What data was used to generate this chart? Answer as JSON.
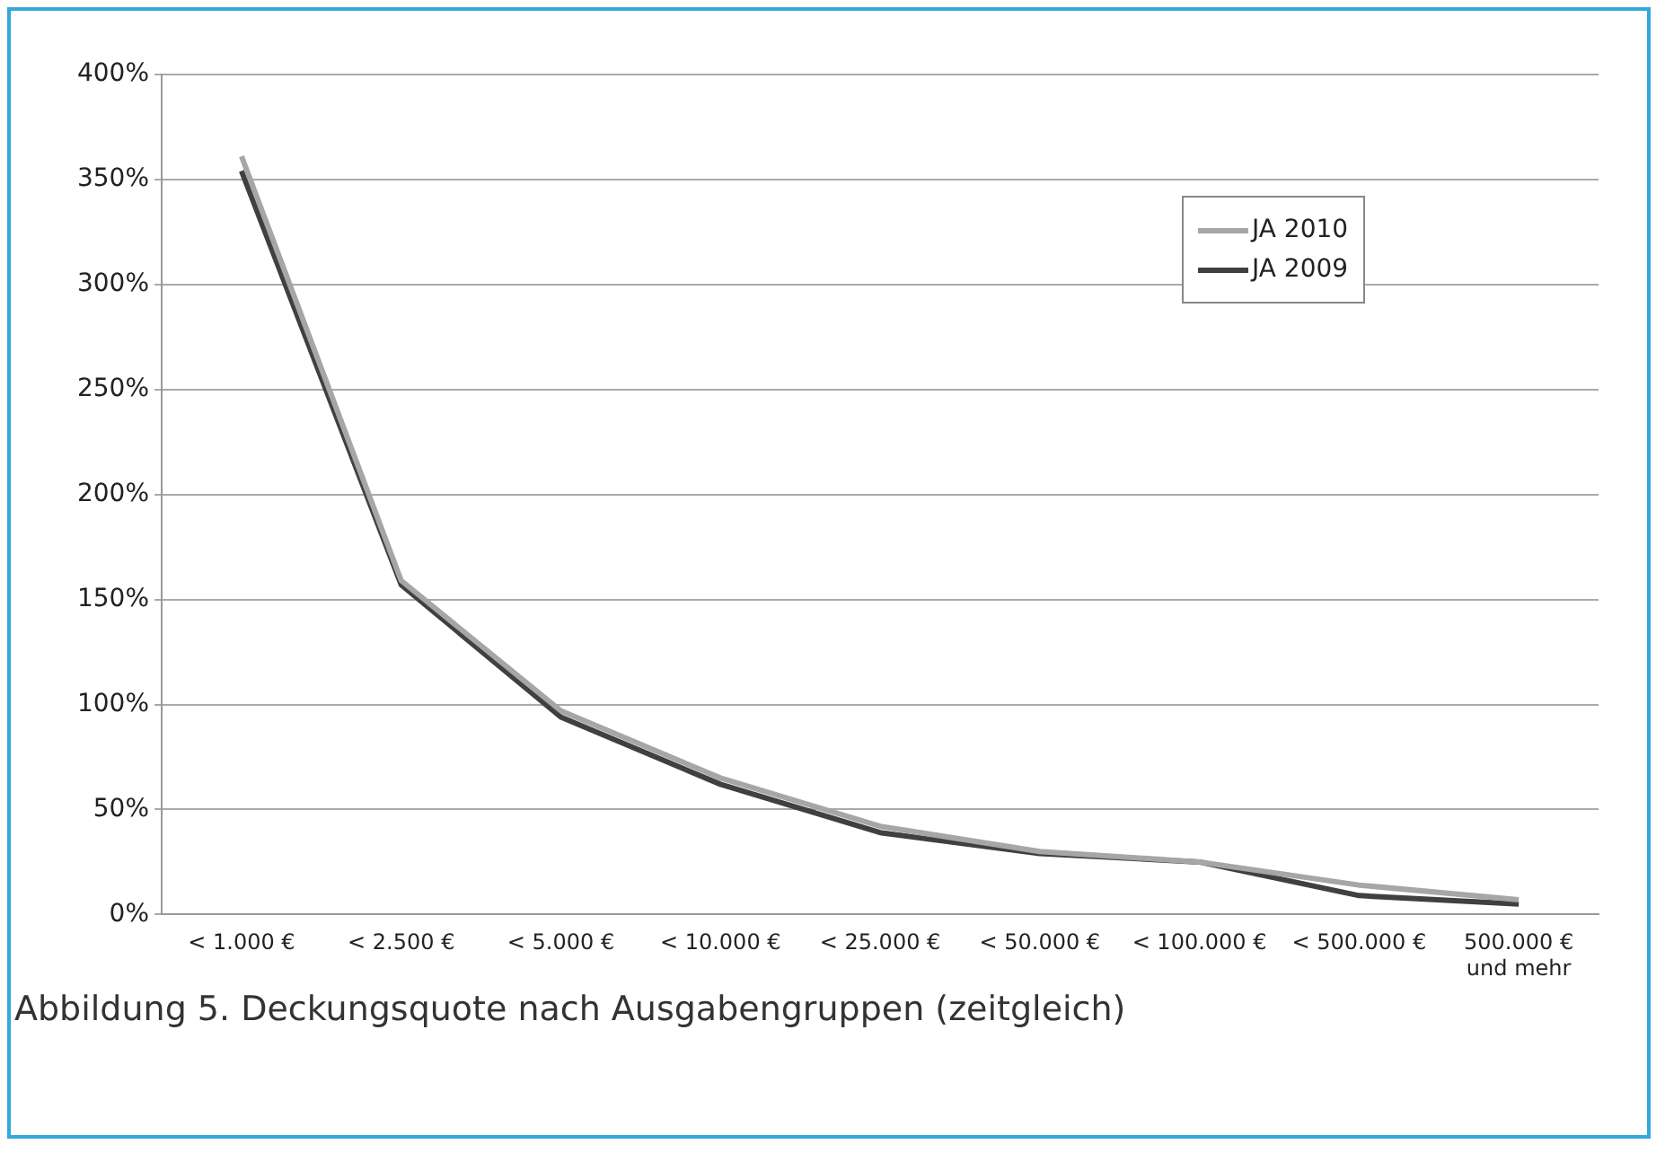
{
  "chart_data": {
    "type": "line",
    "categories": [
      "< 1.000 €",
      "< 2.500 €",
      "< 5.000 €",
      "< 10.000 €",
      "< 25.000 €",
      "< 50.000 €",
      "< 100.000 €",
      "< 500.000 €",
      "500.000 €\nund mehr"
    ],
    "series": [
      {
        "name": "JA 2010",
        "color": "#a6a6a6",
        "values": [
          361,
          159,
          97,
          65,
          42,
          30,
          25,
          14,
          7
        ]
      },
      {
        "name": "JA 2009",
        "color": "#404040",
        "values": [
          354,
          157,
          94,
          62,
          39,
          29,
          25,
          9,
          5
        ]
      }
    ],
    "ylim": [
      0,
      400
    ],
    "yticks": [
      {
        "value": 0,
        "label": "0%"
      },
      {
        "value": 50,
        "label": "50%"
      },
      {
        "value": 100,
        "label": "100%"
      },
      {
        "value": 150,
        "label": "150%"
      },
      {
        "value": 200,
        "label": "200%"
      },
      {
        "value": 250,
        "label": "250%"
      },
      {
        "value": 300,
        "label": "300%"
      },
      {
        "value": 350,
        "label": "350%"
      },
      {
        "value": 400,
        "label": "400%"
      }
    ],
    "grid": "y",
    "legend": "top right",
    "marker": "none",
    "line_style": "solid",
    "annotations": [
      "Abbildung 5. Deckungsquote nach Ausgabengruppen (zeitgleich)"
    ]
  }
}
